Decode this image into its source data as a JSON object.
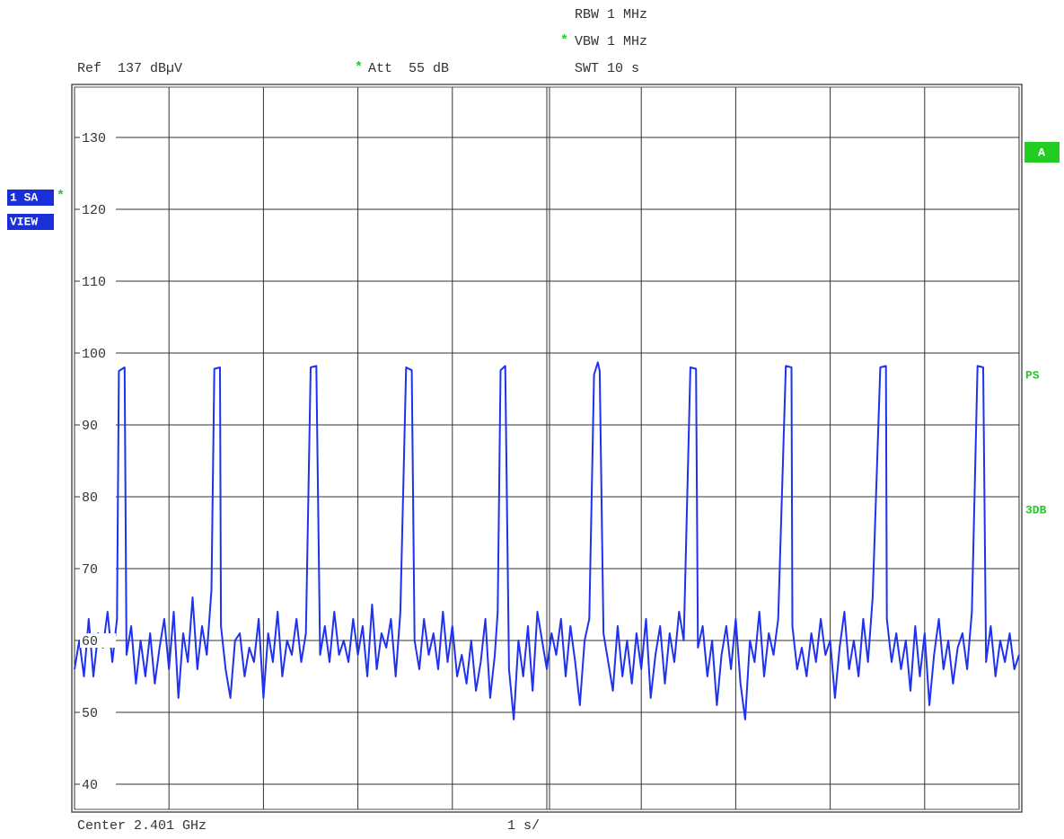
{
  "chart_data": {
    "type": "line",
    "header": {
      "rbw": "RBW 1 MHz",
      "vbw_marker": "*",
      "vbw": "VBW 1 MHz",
      "ref": "Ref  137 dBµV",
      "att_marker": "*",
      "att": "Att  55 dB",
      "swt": "SWT 10 s"
    },
    "footer": {
      "center": "Center 2.401 GHz",
      "span": "1 s/"
    },
    "left_badges": {
      "trace": "1 SA",
      "trace_marker": "*",
      "mode": "VIEW"
    },
    "right_badges": {
      "a": "A",
      "ps": "PS",
      "db": "3DB"
    },
    "ylim": [
      37,
      137
    ],
    "yticks": [
      40,
      50,
      60,
      70,
      80,
      90,
      100,
      110,
      120,
      130
    ],
    "xlim": [
      0,
      10
    ],
    "xticks": [
      0,
      1,
      2,
      3,
      4,
      5,
      6,
      7,
      8,
      9,
      10
    ],
    "grid": true,
    "x": [
      0.0,
      0.05,
      0.1,
      0.15,
      0.2,
      0.25,
      0.3,
      0.35,
      0.4,
      0.45,
      0.47,
      0.53,
      0.55,
      0.6,
      0.65,
      0.7,
      0.75,
      0.8,
      0.85,
      0.9,
      0.95,
      1.0,
      1.05,
      1.1,
      1.15,
      1.2,
      1.25,
      1.3,
      1.35,
      1.4,
      1.45,
      1.48,
      1.54,
      1.55,
      1.6,
      1.65,
      1.7,
      1.75,
      1.8,
      1.85,
      1.9,
      1.95,
      2.0,
      2.05,
      2.1,
      2.15,
      2.2,
      2.25,
      2.3,
      2.35,
      2.4,
      2.45,
      2.5,
      2.56,
      2.6,
      2.65,
      2.7,
      2.75,
      2.8,
      2.85,
      2.9,
      2.95,
      3.0,
      3.05,
      3.1,
      3.15,
      3.2,
      3.25,
      3.3,
      3.35,
      3.4,
      3.45,
      3.51,
      3.57,
      3.6,
      3.65,
      3.7,
      3.75,
      3.8,
      3.85,
      3.9,
      3.95,
      4.0,
      4.05,
      4.1,
      4.15,
      4.2,
      4.25,
      4.3,
      4.35,
      4.4,
      4.45,
      4.48,
      4.51,
      4.56,
      4.6,
      4.65,
      4.7,
      4.75,
      4.8,
      4.85,
      4.9,
      4.95,
      5.0,
      5.05,
      5.1,
      5.15,
      5.2,
      5.25,
      5.3,
      5.35,
      5.4,
      5.45,
      5.5,
      5.54,
      5.56,
      5.6,
      5.65,
      5.7,
      5.75,
      5.8,
      5.85,
      5.9,
      5.95,
      6.0,
      6.05,
      6.1,
      6.15,
      6.2,
      6.25,
      6.3,
      6.35,
      6.4,
      6.45,
      6.52,
      6.58,
      6.6,
      6.65,
      6.7,
      6.75,
      6.8,
      6.85,
      6.9,
      6.95,
      7.0,
      7.05,
      7.1,
      7.15,
      7.2,
      7.25,
      7.3,
      7.35,
      7.4,
      7.45,
      7.53,
      7.59,
      7.6,
      7.65,
      7.7,
      7.75,
      7.8,
      7.85,
      7.9,
      7.95,
      8.0,
      8.05,
      8.1,
      8.15,
      8.2,
      8.25,
      8.3,
      8.35,
      8.4,
      8.45,
      8.53,
      8.59,
      8.6,
      8.65,
      8.7,
      8.75,
      8.8,
      8.85,
      8.9,
      8.95,
      9.0,
      9.05,
      9.1,
      9.15,
      9.2,
      9.25,
      9.3,
      9.35,
      9.4,
      9.45,
      9.5,
      9.56,
      9.62,
      9.65,
      9.7,
      9.75,
      9.8,
      9.85,
      9.9,
      9.95,
      10.0
    ],
    "series": [
      {
        "color": "#1e32f0",
        "values": [
          56,
          60,
          55,
          63,
          55,
          61,
          59,
          64,
          57,
          63,
          97.5,
          98,
          58,
          62,
          54,
          60,
          55,
          61,
          54,
          59,
          63,
          56,
          64,
          52,
          61,
          57,
          66,
          56,
          62,
          58,
          67,
          97.8,
          98,
          62,
          56,
          52,
          60,
          61,
          55,
          59,
          57,
          63,
          52,
          61,
          57,
          64,
          55,
          60,
          58,
          63,
          57,
          61,
          98,
          98.2,
          58,
          62,
          57,
          64,
          58,
          60,
          57,
          63,
          58,
          62,
          55,
          65,
          56,
          61,
          59,
          63,
          55,
          64,
          98,
          97.6,
          60,
          56,
          63,
          58,
          61,
          56,
          64,
          57,
          62,
          55,
          58,
          54,
          60,
          53,
          57,
          63,
          52,
          58,
          64,
          97.6,
          98.2,
          56,
          49,
          60,
          55,
          62,
          53,
          64,
          60,
          56,
          61,
          58,
          63,
          55,
          62,
          57,
          51,
          60,
          63,
          97,
          98.7,
          97.5,
          61,
          57,
          53,
          62,
          55,
          60,
          54,
          61,
          56,
          63,
          52,
          58,
          62,
          54,
          61,
          57,
          64,
          60,
          98,
          97.8,
          59,
          62,
          55,
          60,
          51,
          58,
          62,
          56,
          63,
          54,
          49,
          60,
          57,
          64,
          55,
          61,
          58,
          63,
          98.2,
          98,
          62,
          56,
          59,
          55,
          61,
          57,
          63,
          58,
          60,
          52,
          59,
          64,
          56,
          60,
          55,
          63,
          57,
          66,
          98,
          98.2,
          63,
          57,
          61,
          56,
          60,
          53,
          62,
          55,
          61,
          51,
          58,
          63,
          56,
          60,
          54,
          59,
          61,
          56,
          64,
          98.2,
          98,
          57,
          62,
          55,
          60,
          57,
          61,
          56,
          58
        ]
      }
    ]
  }
}
